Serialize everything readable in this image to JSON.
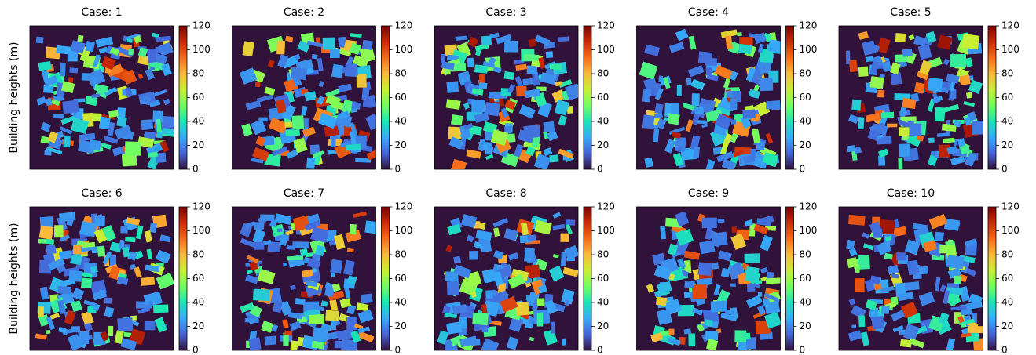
{
  "chart_data": [
    {
      "type": "heatmap",
      "title": "Case: 1",
      "ylabel": "Building heights (m)",
      "colormap": "turbo",
      "clim": [
        0,
        120
      ],
      "cticks": [
        0,
        20,
        40,
        60,
        80,
        100,
        120
      ]
    },
    {
      "type": "heatmap",
      "title": "Case: 2",
      "colormap": "turbo",
      "clim": [
        0,
        120
      ],
      "cticks": [
        0,
        20,
        40,
        60,
        80,
        100,
        120
      ]
    },
    {
      "type": "heatmap",
      "title": "Case: 3",
      "colormap": "turbo",
      "clim": [
        0,
        120
      ],
      "cticks": [
        0,
        20,
        40,
        60,
        80,
        100,
        120
      ]
    },
    {
      "type": "heatmap",
      "title": "Case: 4",
      "colormap": "turbo",
      "clim": [
        0,
        120
      ],
      "cticks": [
        0,
        20,
        40,
        60,
        80,
        100,
        120
      ]
    },
    {
      "type": "heatmap",
      "title": "Case: 5",
      "colormap": "turbo",
      "clim": [
        0,
        120
      ],
      "cticks": [
        0,
        20,
        40,
        60,
        80,
        100,
        120
      ]
    },
    {
      "type": "heatmap",
      "title": "Case: 6",
      "ylabel": "Building heights (m)",
      "colormap": "turbo",
      "clim": [
        0,
        120
      ],
      "cticks": [
        0,
        20,
        40,
        60,
        80,
        100,
        120
      ]
    },
    {
      "type": "heatmap",
      "title": "Case: 7",
      "colormap": "turbo",
      "clim": [
        0,
        120
      ],
      "cticks": [
        0,
        20,
        40,
        60,
        80,
        100,
        120
      ]
    },
    {
      "type": "heatmap",
      "title": "Case: 8",
      "colormap": "turbo",
      "clim": [
        0,
        120
      ],
      "cticks": [
        0,
        20,
        40,
        60,
        80,
        100,
        120
      ]
    },
    {
      "type": "heatmap",
      "title": "Case: 9",
      "colormap": "turbo",
      "clim": [
        0,
        120
      ],
      "cticks": [
        0,
        20,
        40,
        60,
        80,
        100,
        120
      ]
    },
    {
      "type": "heatmap",
      "title": "Case: 10",
      "colormap": "turbo",
      "clim": [
        0,
        120
      ],
      "cticks": [
        0,
        20,
        40,
        60,
        80,
        100,
        120
      ]
    }
  ]
}
